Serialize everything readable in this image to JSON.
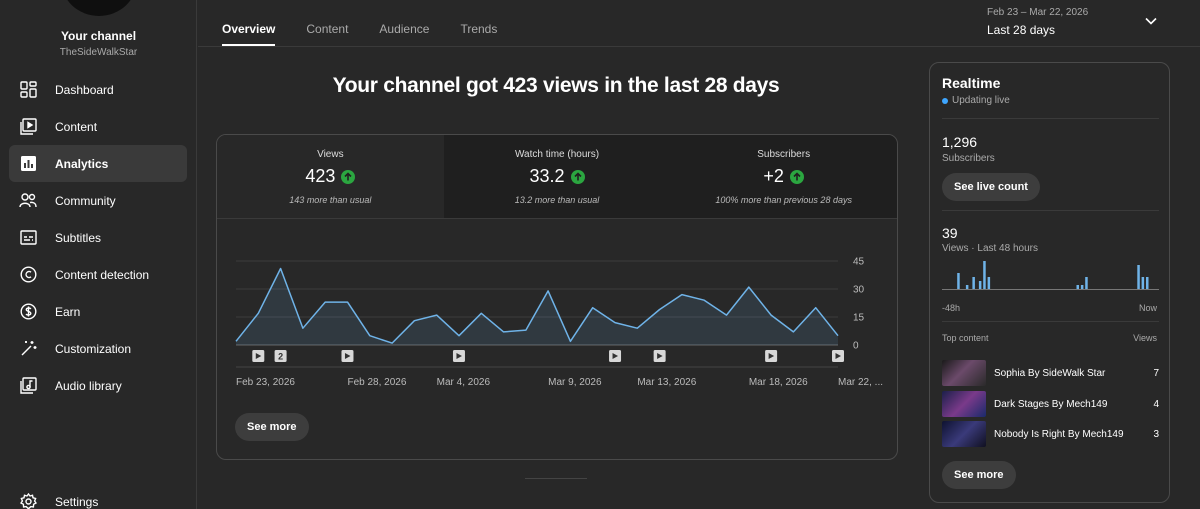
{
  "sidebar": {
    "channel_title": "Your channel",
    "channel_handle": "TheSideWalkStar",
    "items": [
      {
        "label": "Dashboard",
        "icon": "dashboard-icon"
      },
      {
        "label": "Content",
        "icon": "content-icon"
      },
      {
        "label": "Analytics",
        "icon": "analytics-icon",
        "active": true
      },
      {
        "label": "Community",
        "icon": "community-icon"
      },
      {
        "label": "Subtitles",
        "icon": "subtitles-icon"
      },
      {
        "label": "Content detection",
        "icon": "copyright-icon"
      },
      {
        "label": "Earn",
        "icon": "dollar-icon"
      },
      {
        "label": "Customization",
        "icon": "magic-wand-icon"
      },
      {
        "label": "Audio library",
        "icon": "audio-library-icon"
      }
    ],
    "settings_label": "Settings"
  },
  "tabs": [
    "Overview",
    "Content",
    "Audience",
    "Trends"
  ],
  "date_range": {
    "sub": "Feb 23 – Mar 22, 2026",
    "value": "Last 28 days"
  },
  "headline": "Your channel got 423 views in the last 28 days",
  "metrics": [
    {
      "label": "Views",
      "value": "423",
      "sub": "143 more than usual"
    },
    {
      "label": "Watch time (hours)",
      "value": "33.2",
      "sub": "13.2 more than usual"
    },
    {
      "label": "Subscribers",
      "value": "+2",
      "sub": "100% more than previous 28 days"
    }
  ],
  "chart_data": {
    "type": "area",
    "x": [
      "Feb 23",
      "Feb 24",
      "Feb 25",
      "Feb 26",
      "Feb 27",
      "Feb 28",
      "Mar 1",
      "Mar 2",
      "Mar 3",
      "Mar 4",
      "Mar 5",
      "Mar 6",
      "Mar 7",
      "Mar 8",
      "Mar 9",
      "Mar 10",
      "Mar 11",
      "Mar 12",
      "Mar 13",
      "Mar 14",
      "Mar 15",
      "Mar 16",
      "Mar 17",
      "Mar 18",
      "Mar 19",
      "Mar 20",
      "Mar 21",
      "Mar 22"
    ],
    "values": [
      2,
      17,
      41,
      9,
      23,
      23,
      5,
      1,
      13,
      16,
      5,
      17,
      7,
      8,
      29,
      2,
      20,
      12,
      9,
      19,
      27,
      24,
      16,
      31,
      16,
      7,
      20,
      5
    ],
    "x_tick_labels": [
      "Feb 23, 2026",
      "Feb 28, 2026",
      "Mar 4, 2026",
      "Mar 9, 2026",
      "Mar 13, 2026",
      "Mar 18, 2026",
      "Mar 22, ..."
    ],
    "x_tick_indices": [
      0,
      5,
      9,
      14,
      18,
      23,
      27
    ],
    "y_ticks": [
      0,
      15,
      30,
      45
    ],
    "ylim": [
      0,
      45
    ],
    "markers": [
      {
        "index": 1,
        "label": ""
      },
      {
        "index": 2,
        "label": "2"
      },
      {
        "index": 5,
        "label": ""
      },
      {
        "index": 10,
        "label": ""
      },
      {
        "index": 17,
        "label": ""
      },
      {
        "index": 19,
        "label": ""
      },
      {
        "index": 24,
        "label": ""
      },
      {
        "index": 27,
        "label": ""
      }
    ],
    "line_color": "#6fb3e8",
    "grid": true
  },
  "card_see_more": "See more",
  "realtime": {
    "title": "Realtime",
    "live_label": "Updating live",
    "subscribers_value": "1,296",
    "subscribers_label": "Subscribers",
    "live_count_button": "See live count",
    "views_value": "39",
    "views_label": "Views · Last 48 hours",
    "bars": [
      0,
      0,
      0,
      0,
      0,
      0,
      0,
      0,
      0,
      0,
      0,
      0,
      0,
      0,
      6,
      0,
      0,
      0,
      3,
      0,
      0,
      0,
      0,
      4,
      0,
      0,
      0,
      0,
      0,
      0,
      0,
      0,
      0,
      0,
      0,
      0,
      0,
      0,
      0,
      0,
      1,
      0,
      0,
      0,
      0,
      0,
      0,
      0,
      0,
      0,
      0,
      0,
      0,
      0,
      0,
      0,
      0,
      0,
      0,
      0,
      0,
      0,
      0,
      0,
      0,
      0,
      0,
      0,
      0,
      0,
      0,
      0,
      0,
      0,
      0,
      0,
      0,
      0,
      0,
      0,
      0,
      0,
      0,
      0,
      0,
      0,
      0,
      0,
      0,
      0,
      0,
      0,
      0,
      0,
      0,
      0,
      0,
      0,
      0,
      0
    ],
    "bar_values": [
      {
        "pos": 0.07,
        "v": 4
      },
      {
        "pos": 0.11,
        "v": 1
      },
      {
        "pos": 0.14,
        "v": 3
      },
      {
        "pos": 0.17,
        "v": 2
      },
      {
        "pos": 0.19,
        "v": 7
      },
      {
        "pos": 0.21,
        "v": 3
      },
      {
        "pos": 0.62,
        "v": 1
      },
      {
        "pos": 0.64,
        "v": 1
      },
      {
        "pos": 0.66,
        "v": 3
      },
      {
        "pos": 0.9,
        "v": 6
      },
      {
        "pos": 0.92,
        "v": 3
      },
      {
        "pos": 0.94,
        "v": 3
      }
    ],
    "axis_left": "-48h",
    "axis_right": "Now",
    "top_content_label": "Top content",
    "top_views_label": "Views",
    "top_content": [
      {
        "title": "Sophia By SideWalk Star",
        "views": "7",
        "thumb": "#5a3a55"
      },
      {
        "title": "Dark Stages By Mech149",
        "views": "4",
        "thumb": "#2a2f55"
      },
      {
        "title": "Nobody Is Right By Mech149",
        "views": "3",
        "thumb": "#1c2040"
      }
    ],
    "see_more": "See more"
  }
}
